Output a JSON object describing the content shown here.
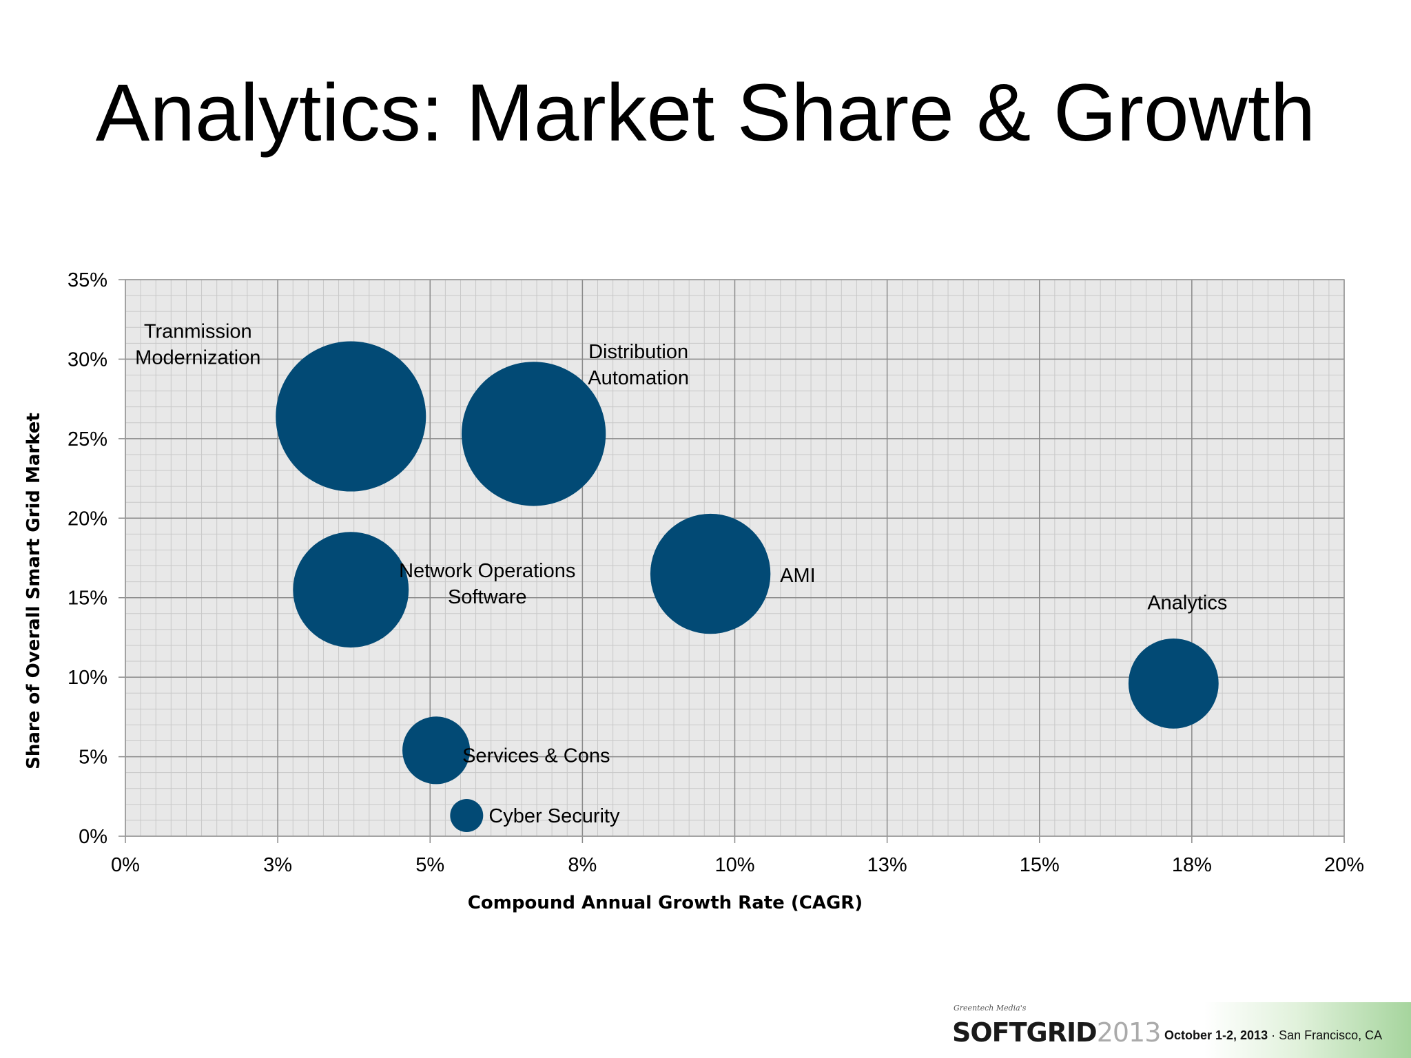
{
  "slide": {
    "title": "Analytics: Market Share & Growth"
  },
  "chart_data": {
    "type": "bubble",
    "xlabel": "Compound Annual Growth Rate (CAGR)",
    "ylabel": "Share of Overall Smart Grid Market",
    "xlim": [
      0,
      20
    ],
    "ylim": [
      0,
      35
    ],
    "x_ticks": [
      "0%",
      "3%",
      "5%",
      "8%",
      "10%",
      "13%",
      "15%",
      "18%",
      "20%"
    ],
    "y_ticks": [
      "0%",
      "5%",
      "10%",
      "15%",
      "20%",
      "25%",
      "30%",
      "35%"
    ],
    "x_tick_values": [
      0,
      2.5,
      5,
      7.5,
      10,
      12.5,
      15,
      17.5,
      20
    ],
    "y_tick_values": [
      0,
      5,
      10,
      15,
      20,
      25,
      30,
      35
    ],
    "grid": true,
    "bubble_color": "#024A75",
    "plot_background": "#E8E8E8",
    "points": [
      {
        "name": "Transmission Modernization",
        "label_lines": [
          "Tranmission",
          "Modernization"
        ],
        "x": 3.7,
        "y": 26.4,
        "size": 1.0
      },
      {
        "name": "Distribution Automation",
        "label_lines": [
          "Distribution",
          "Automation"
        ],
        "x": 6.7,
        "y": 25.3,
        "size": 0.96
      },
      {
        "name": "Network Operations Software",
        "label_lines": [
          "Network Operations",
          "Software"
        ],
        "x": 3.7,
        "y": 15.5,
        "size": 0.77
      },
      {
        "name": "AMI",
        "label_lines": [
          "AMI"
        ],
        "x": 9.6,
        "y": 16.5,
        "size": 0.8
      },
      {
        "name": "Analytics",
        "label_lines": [
          "Analytics"
        ],
        "x": 17.2,
        "y": 9.6,
        "size": 0.6
      },
      {
        "name": "Services & Cons",
        "label_lines": [
          "Services & Cons"
        ],
        "x": 5.1,
        "y": 5.4,
        "size": 0.45
      },
      {
        "name": "Cyber Security",
        "label_lines": [
          "Cyber Security"
        ],
        "x": 5.6,
        "y": 1.3,
        "size": 0.22
      }
    ]
  },
  "footer": {
    "kicker": "Greentech Media's",
    "logo_word": "SOFTGRID",
    "logo_year": "2013",
    "event_date": "October 1-2, 2013",
    "event_separator": " · ",
    "event_location": "San Francisco, CA"
  }
}
